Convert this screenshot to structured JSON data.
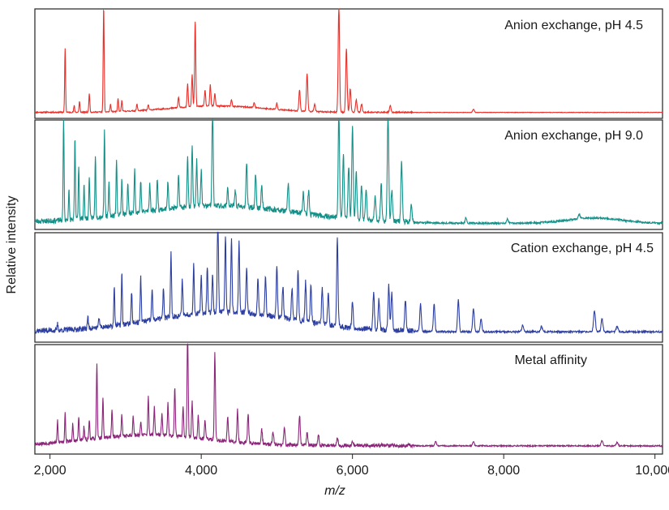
{
  "chart_data": {
    "type": "line",
    "ylabel": "Relative intensity",
    "xlabel": "m/z",
    "xlim": [
      1800,
      10100
    ],
    "xticks": [
      {
        "value": 2000,
        "label": "2,000"
      },
      {
        "value": 4000,
        "label": "4,000"
      },
      {
        "value": 6000,
        "label": "6,000"
      },
      {
        "value": 8000,
        "label": "8,000"
      },
      {
        "value": 10000,
        "label": "10,000"
      }
    ],
    "grid": false,
    "series": [
      {
        "name": "Anion exchange, pH 4.5",
        "color": "#e8302a",
        "baseline": 0.04,
        "noise": 0.012,
        "seed": 11,
        "hump": {
          "center": 4200,
          "width": 900,
          "height": 0.06
        },
        "peaks": [
          [
            2200,
            0.6
          ],
          [
            2320,
            0.06
          ],
          [
            2390,
            0.1
          ],
          [
            2520,
            0.18
          ],
          [
            2710,
            1.0
          ],
          [
            2800,
            0.07
          ],
          [
            2900,
            0.12
          ],
          [
            2950,
            0.1
          ],
          [
            3150,
            0.06
          ],
          [
            3300,
            0.05
          ],
          [
            3700,
            0.1
          ],
          [
            3820,
            0.22
          ],
          [
            3880,
            0.3
          ],
          [
            3920,
            0.8
          ],
          [
            4050,
            0.15
          ],
          [
            4120,
            0.2
          ],
          [
            4180,
            0.12
          ],
          [
            4400,
            0.06
          ],
          [
            4700,
            0.05
          ],
          [
            5000,
            0.06
          ],
          [
            5300,
            0.2
          ],
          [
            5400,
            0.36
          ],
          [
            5500,
            0.07
          ],
          [
            5820,
            1.0
          ],
          [
            5920,
            0.6
          ],
          [
            5970,
            0.22
          ],
          [
            6050,
            0.12
          ],
          [
            6120,
            0.08
          ],
          [
            6500,
            0.06
          ],
          [
            7600,
            0.03
          ]
        ]
      },
      {
        "name": "Anion exchange, pH 9.0",
        "color": "#149088",
        "baseline": 0.04,
        "noise": 0.05,
        "seed": 23,
        "hump": {
          "center": 4200,
          "width": 1500,
          "height": 0.16
        },
        "peaks": [
          [
            2180,
            1.0
          ],
          [
            2250,
            0.28
          ],
          [
            2330,
            0.76
          ],
          [
            2380,
            0.5
          ],
          [
            2450,
            0.32
          ],
          [
            2520,
            0.4
          ],
          [
            2600,
            0.58
          ],
          [
            2720,
            0.8
          ],
          [
            2780,
            0.3
          ],
          [
            2880,
            0.5
          ],
          [
            2950,
            0.34
          ],
          [
            3030,
            0.28
          ],
          [
            3120,
            0.42
          ],
          [
            3200,
            0.3
          ],
          [
            3320,
            0.26
          ],
          [
            3420,
            0.3
          ],
          [
            3560,
            0.26
          ],
          [
            3700,
            0.3
          ],
          [
            3820,
            0.5
          ],
          [
            3880,
            0.58
          ],
          [
            3940,
            0.44
          ],
          [
            4000,
            0.34
          ],
          [
            4150,
            1.0
          ],
          [
            4350,
            0.18
          ],
          [
            4450,
            0.16
          ],
          [
            4600,
            0.42
          ],
          [
            4720,
            0.32
          ],
          [
            4800,
            0.22
          ],
          [
            5150,
            0.26
          ],
          [
            5350,
            0.2
          ],
          [
            5420,
            0.22
          ],
          [
            5820,
            1.0
          ],
          [
            5880,
            0.6
          ],
          [
            5950,
            0.48
          ],
          [
            6000,
            0.86
          ],
          [
            6050,
            0.44
          ],
          [
            6120,
            0.32
          ],
          [
            6180,
            0.28
          ],
          [
            6300,
            0.22
          ],
          [
            6380,
            0.34
          ],
          [
            6470,
            1.0
          ],
          [
            6520,
            0.3
          ],
          [
            6650,
            0.56
          ],
          [
            6780,
            0.16
          ],
          [
            7500,
            0.05
          ],
          [
            8050,
            0.04
          ],
          [
            9000,
            0.04
          ]
        ],
        "extra_humps": [
          {
            "center": 9200,
            "width": 500,
            "height": 0.05
          }
        ]
      },
      {
        "name": "Cation exchange, pH 4.5",
        "color": "#2d3fa0",
        "baseline": 0.08,
        "noise": 0.05,
        "seed": 37,
        "hump": {
          "center": 4300,
          "width": 1300,
          "height": 0.18
        },
        "peaks": [
          [
            2100,
            0.06
          ],
          [
            2500,
            0.12
          ],
          [
            2650,
            0.1
          ],
          [
            2850,
            0.38
          ],
          [
            2950,
            0.48
          ],
          [
            3080,
            0.3
          ],
          [
            3200,
            0.42
          ],
          [
            3350,
            0.3
          ],
          [
            3500,
            0.28
          ],
          [
            3600,
            0.6
          ],
          [
            3750,
            0.34
          ],
          [
            3900,
            0.46
          ],
          [
            4000,
            0.34
          ],
          [
            4080,
            0.44
          ],
          [
            4150,
            0.36
          ],
          [
            4220,
            1.0
          ],
          [
            4320,
            0.72
          ],
          [
            4400,
            0.68
          ],
          [
            4500,
            0.66
          ],
          [
            4600,
            0.42
          ],
          [
            4750,
            0.34
          ],
          [
            4850,
            0.38
          ],
          [
            5000,
            0.46
          ],
          [
            5080,
            0.3
          ],
          [
            5200,
            0.3
          ],
          [
            5280,
            0.48
          ],
          [
            5380,
            0.38
          ],
          [
            5450,
            0.34
          ],
          [
            5600,
            0.34
          ],
          [
            5680,
            0.3
          ],
          [
            5800,
            0.82
          ],
          [
            6000,
            0.24
          ],
          [
            6280,
            0.34
          ],
          [
            6350,
            0.28
          ],
          [
            6480,
            0.42
          ],
          [
            6520,
            0.36
          ],
          [
            6700,
            0.28
          ],
          [
            6900,
            0.26
          ],
          [
            7080,
            0.26
          ],
          [
            7400,
            0.3
          ],
          [
            7600,
            0.22
          ],
          [
            7700,
            0.12
          ],
          [
            8250,
            0.06
          ],
          [
            8500,
            0.05
          ],
          [
            9200,
            0.2
          ],
          [
            9300,
            0.12
          ],
          [
            9500,
            0.05
          ]
        ]
      },
      {
        "name": "Metal affinity",
        "color": "#8c267a",
        "baseline": 0.06,
        "noise": 0.035,
        "seed": 53,
        "hump": {
          "center": 3300,
          "width": 1100,
          "height": 0.1
        },
        "peaks": [
          [
            2100,
            0.2
          ],
          [
            2200,
            0.28
          ],
          [
            2300,
            0.16
          ],
          [
            2380,
            0.22
          ],
          [
            2450,
            0.12
          ],
          [
            2520,
            0.18
          ],
          [
            2620,
            0.7
          ],
          [
            2700,
            0.38
          ],
          [
            2820,
            0.24
          ],
          [
            2950,
            0.2
          ],
          [
            3100,
            0.18
          ],
          [
            3200,
            0.12
          ],
          [
            3300,
            0.35
          ],
          [
            3380,
            0.26
          ],
          [
            3480,
            0.2
          ],
          [
            3560,
            0.3
          ],
          [
            3650,
            0.46
          ],
          [
            3760,
            0.28
          ],
          [
            3820,
            1.0
          ],
          [
            3880,
            0.34
          ],
          [
            3960,
            0.22
          ],
          [
            4050,
            0.18
          ],
          [
            4180,
            0.82
          ],
          [
            4350,
            0.24
          ],
          [
            4480,
            0.3
          ],
          [
            4620,
            0.28
          ],
          [
            4800,
            0.14
          ],
          [
            4950,
            0.12
          ],
          [
            5100,
            0.16
          ],
          [
            5300,
            0.28
          ],
          [
            5400,
            0.12
          ],
          [
            5550,
            0.1
          ],
          [
            5800,
            0.08
          ],
          [
            6000,
            0.04
          ],
          [
            7100,
            0.04
          ],
          [
            7600,
            0.04
          ],
          [
            9300,
            0.05
          ],
          [
            9500,
            0.03
          ]
        ]
      }
    ]
  }
}
